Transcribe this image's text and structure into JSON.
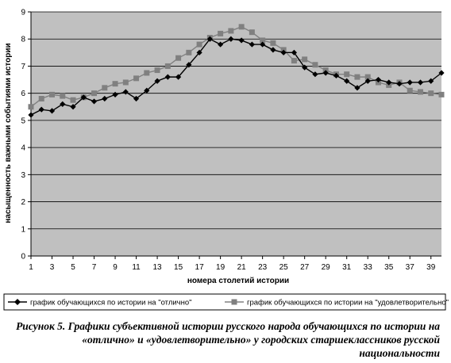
{
  "chart_data": {
    "type": "line",
    "ylabel": "насыщенность важными событиями истории",
    "xlabel": "номера столетий истории",
    "ylim": [
      0,
      9
    ],
    "yticks": [
      "0",
      "1",
      "2",
      "3",
      "4",
      "5",
      "6",
      "7",
      "8",
      "9"
    ],
    "xlim": [
      1,
      40
    ],
    "xticks": [
      "1",
      "3",
      "5",
      "7",
      "9",
      "11",
      "13",
      "15",
      "17",
      "19",
      "21",
      "23",
      "25",
      "27",
      "29",
      "31",
      "33",
      "35",
      "37",
      "39"
    ],
    "x": [
      1,
      2,
      3,
      4,
      5,
      6,
      7,
      8,
      9,
      10,
      11,
      12,
      13,
      14,
      15,
      16,
      17,
      18,
      19,
      20,
      21,
      22,
      23,
      24,
      25,
      26,
      27,
      28,
      29,
      30,
      31,
      32,
      33,
      34,
      35,
      36,
      37,
      38,
      39,
      40
    ],
    "grid": true,
    "background": "#c0c0c0",
    "legend_position": "bottom",
    "series": [
      {
        "name": "график обучающихся по истории на \"отлично\"",
        "color": "#000000",
        "marker": "diamond",
        "values": [
          5.2,
          5.4,
          5.35,
          5.6,
          5.5,
          5.85,
          5.7,
          5.8,
          5.95,
          6.05,
          5.8,
          6.1,
          6.45,
          6.6,
          6.6,
          7.05,
          7.5,
          8.0,
          7.8,
          8.0,
          7.95,
          7.8,
          7.8,
          7.6,
          7.5,
          7.5,
          6.95,
          6.7,
          6.75,
          6.65,
          6.45,
          6.2,
          6.45,
          6.5,
          6.4,
          6.35,
          6.4,
          6.4,
          6.45,
          6.75
        ]
      },
      {
        "name": "график обучающихся по истории на \"удовлетворительно\"",
        "color": "#808080",
        "marker": "square",
        "values": [
          5.5,
          5.8,
          5.95,
          5.9,
          5.75,
          5.85,
          6.0,
          6.2,
          6.35,
          6.4,
          6.55,
          6.75,
          6.85,
          7.0,
          7.3,
          7.5,
          7.8,
          8.05,
          8.2,
          8.3,
          8.45,
          8.25,
          7.95,
          7.85,
          7.6,
          7.2,
          7.25,
          7.05,
          6.85,
          6.7,
          6.7,
          6.6,
          6.6,
          6.4,
          6.3,
          6.4,
          6.1,
          6.05,
          6.0,
          5.95
        ]
      }
    ]
  },
  "caption": "Рисунок 5. Графики субъективной истории русского народа обучающихся по истории на «отлично» и «удовлетворительно» у городских старшеклассников русской национальности"
}
